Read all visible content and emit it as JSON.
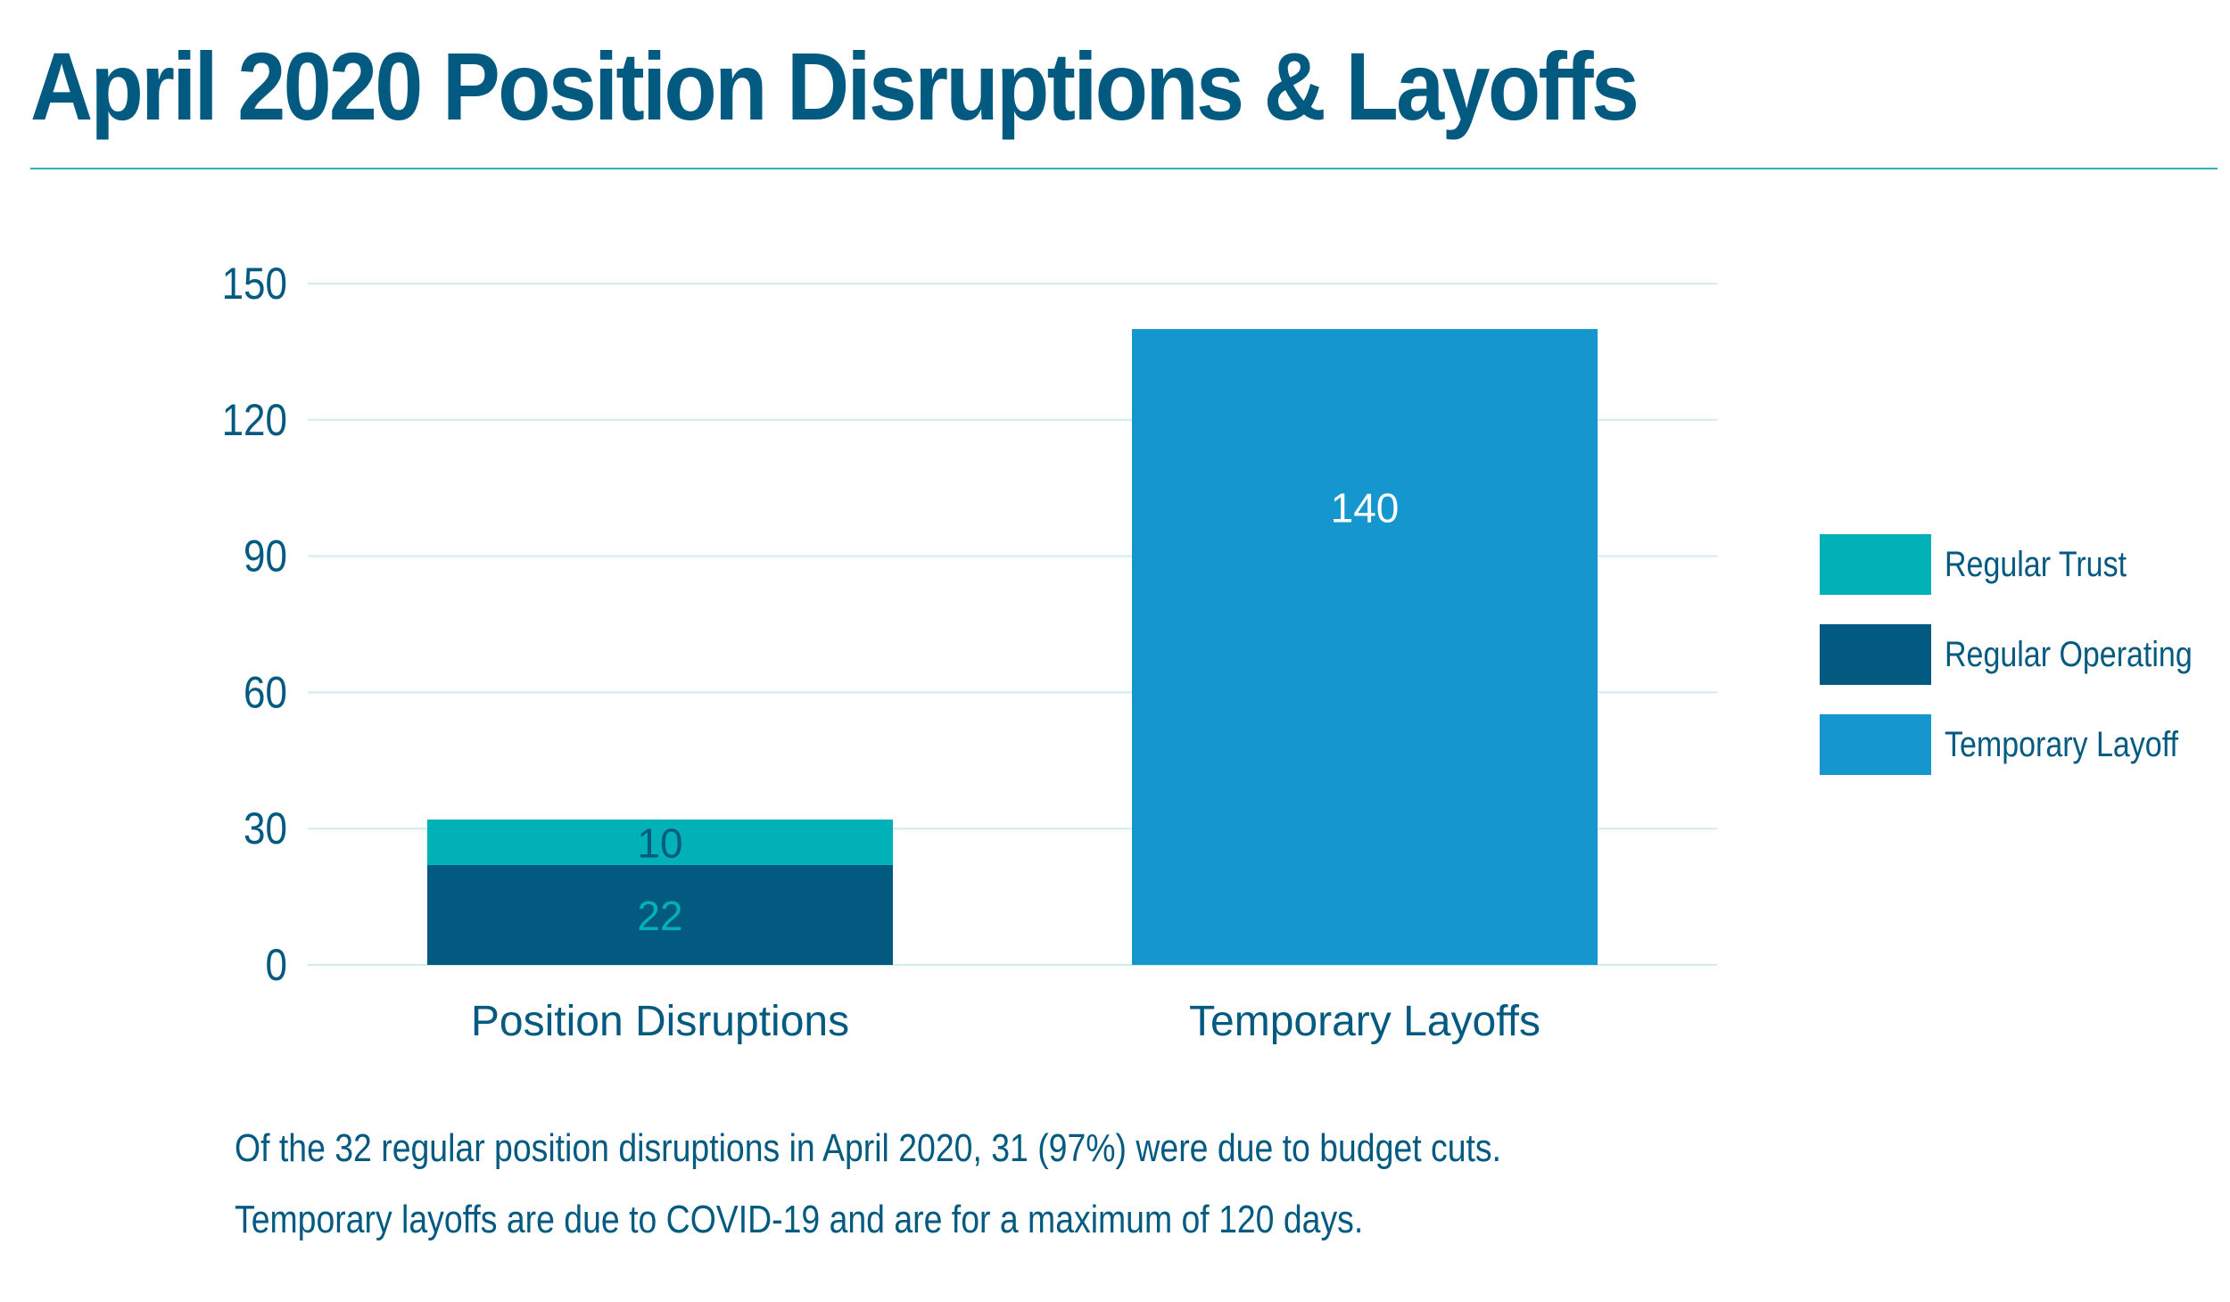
{
  "header": {
    "title": "April 2020 Position Disruptions & Layoffs"
  },
  "notes": [
    "Of the 32 regular position disruptions in April 2020, 31 (97%) were due to budget cuts.",
    "Temporary layoffs are due to COVID-19 and are for a maximum of 120 days."
  ],
  "colors": {
    "title": "#035A80",
    "rule": "#2BB3C0",
    "text": "#035A80",
    "grid": "#CDEDEF",
    "regular_trust": "#00B2B8",
    "regular_operating": "#025A80",
    "temporary_layoff": "#1596CF",
    "label_on_trust": "#035A80",
    "label_on_operating": "#00B2B8",
    "label_on_temporary": "#FFFFFF"
  },
  "chart_data": {
    "type": "bar",
    "stacked": true,
    "title": "",
    "xlabel": "",
    "ylabel": "",
    "categories": [
      "Position Disruptions",
      "Temporary Layoffs"
    ],
    "series": [
      {
        "name": "Regular Operating",
        "values": [
          22,
          null
        ],
        "data_labels": [
          "22",
          ""
        ]
      },
      {
        "name": "Regular Trust",
        "values": [
          10,
          null
        ],
        "data_labels": [
          "10",
          ""
        ]
      },
      {
        "name": "Temporary Layoff",
        "values": [
          null,
          140
        ],
        "data_labels": [
          "",
          "140"
        ]
      }
    ],
    "legend_order": [
      "Regular Trust",
      "Regular Operating",
      "Temporary Layoff"
    ],
    "ylim": [
      0,
      150
    ],
    "yticks": [
      0,
      30,
      60,
      90,
      120,
      150
    ],
    "grid": true,
    "legend_position": "right"
  }
}
